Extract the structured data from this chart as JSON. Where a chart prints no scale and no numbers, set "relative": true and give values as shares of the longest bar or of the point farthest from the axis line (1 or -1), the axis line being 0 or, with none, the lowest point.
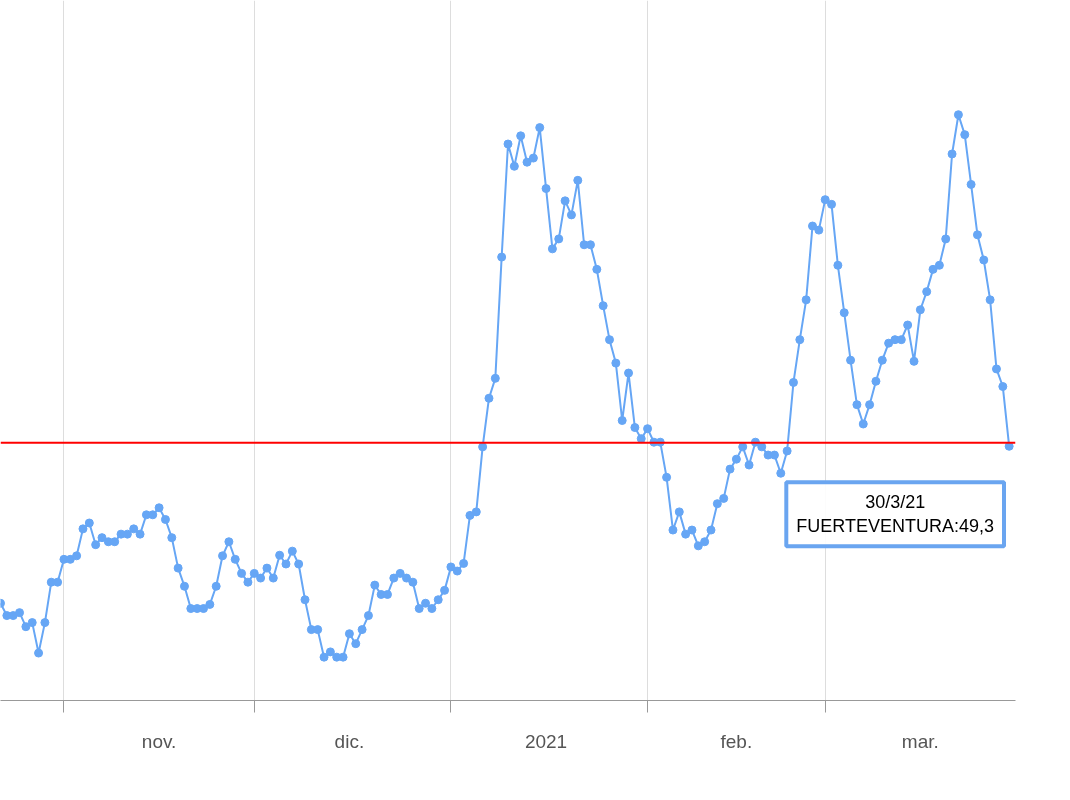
{
  "chart_data": {
    "type": "line",
    "relative": true,
    "marker": "circle",
    "line_style": "solid",
    "grid": "x",
    "xlim": [
      "2020-10-22",
      "2021-03-31"
    ],
    "xticks": [
      {
        "value": "2020-11-01",
        "label": null
      },
      {
        "value": "2020-11-16",
        "label": "nov."
      },
      {
        "value": "2020-12-01",
        "label": null
      },
      {
        "value": "2020-12-16",
        "label": "dic."
      },
      {
        "value": "2021-01-01",
        "label": null
      },
      {
        "value": "2021-01-16",
        "label": "2021"
      },
      {
        "value": "2021-02-01",
        "label": null
      },
      {
        "value": "2021-02-15",
        "label": "feb."
      },
      {
        "value": "2021-03-01",
        "label": null
      },
      {
        "value": "2021-03-16",
        "label": "mar."
      }
    ],
    "ref_lines": [
      {
        "axis": "y",
        "value": 0.44,
        "color": "#ff0000"
      }
    ],
    "annotations": [
      {
        "text": "30/3/21\nFUERTEVENTURA:49,3",
        "x": "2021-03-30",
        "y": 0.434
      }
    ],
    "series": [
      {
        "color": "#66a6f5",
        "x": [
          "2020-10-22",
          "2020-10-23",
          "2020-10-24",
          "2020-10-25",
          "2020-10-26",
          "2020-10-27",
          "2020-10-28",
          "2020-10-29",
          "2020-10-30",
          "2020-10-31",
          "2020-11-01",
          "2020-11-02",
          "2020-11-03",
          "2020-11-04",
          "2020-11-05",
          "2020-11-06",
          "2020-11-07",
          "2020-11-08",
          "2020-11-09",
          "2020-11-10",
          "2020-11-11",
          "2020-11-12",
          "2020-11-13",
          "2020-11-14",
          "2020-11-15",
          "2020-11-16",
          "2020-11-17",
          "2020-11-18",
          "2020-11-19",
          "2020-11-20",
          "2020-11-21",
          "2020-11-22",
          "2020-11-23",
          "2020-11-24",
          "2020-11-25",
          "2020-11-26",
          "2020-11-27",
          "2020-11-28",
          "2020-11-29",
          "2020-11-30",
          "2020-12-01",
          "2020-12-02",
          "2020-12-03",
          "2020-12-04",
          "2020-12-05",
          "2020-12-06",
          "2020-12-07",
          "2020-12-08",
          "2020-12-09",
          "2020-12-10",
          "2020-12-11",
          "2020-12-12",
          "2020-12-13",
          "2020-12-14",
          "2020-12-15",
          "2020-12-16",
          "2020-12-17",
          "2020-12-18",
          "2020-12-19",
          "2020-12-20",
          "2020-12-21",
          "2020-12-22",
          "2020-12-23",
          "2020-12-24",
          "2020-12-25",
          "2020-12-26",
          "2020-12-27",
          "2020-12-28",
          "2020-12-29",
          "2020-12-30",
          "2020-12-31",
          "2021-01-01",
          "2021-01-02",
          "2021-01-03",
          "2021-01-04",
          "2021-01-05",
          "2021-01-06",
          "2021-01-07",
          "2021-01-08",
          "2021-01-09",
          "2021-01-10",
          "2021-01-11",
          "2021-01-12",
          "2021-01-13",
          "2021-01-14",
          "2021-01-15",
          "2021-01-16",
          "2021-01-17",
          "2021-01-18",
          "2021-01-19",
          "2021-01-20",
          "2021-01-21",
          "2021-01-22",
          "2021-01-23",
          "2021-01-24",
          "2021-01-25",
          "2021-01-26",
          "2021-01-27",
          "2021-01-28",
          "2021-01-29",
          "2021-01-30",
          "2021-01-31",
          "2021-02-01",
          "2021-02-02",
          "2021-02-03",
          "2021-02-04",
          "2021-02-05",
          "2021-02-06",
          "2021-02-07",
          "2021-02-08",
          "2021-02-09",
          "2021-02-10",
          "2021-02-11",
          "2021-02-12",
          "2021-02-13",
          "2021-02-14",
          "2021-02-15",
          "2021-02-16",
          "2021-02-17",
          "2021-02-18",
          "2021-02-19",
          "2021-02-20",
          "2021-02-21",
          "2021-02-22",
          "2021-02-23",
          "2021-02-24",
          "2021-02-25",
          "2021-02-26",
          "2021-02-27",
          "2021-02-28",
          "2021-03-01",
          "2021-03-02",
          "2021-03-03",
          "2021-03-04",
          "2021-03-05",
          "2021-03-06",
          "2021-03-07",
          "2021-03-08",
          "2021-03-09",
          "2021-03-10",
          "2021-03-11",
          "2021-03-12",
          "2021-03-13",
          "2021-03-14",
          "2021-03-15",
          "2021-03-16",
          "2021-03-17",
          "2021-03-18",
          "2021-03-19",
          "2021-03-20",
          "2021-03-21",
          "2021-03-22",
          "2021-03-23",
          "2021-03-24",
          "2021-03-25",
          "2021-03-26",
          "2021-03-27",
          "2021-03-28",
          "2021-03-29",
          "2021-03-30"
        ],
        "values": [
          0.166,
          0.145,
          0.145,
          0.15,
          0.126,
          0.133,
          0.081,
          0.133,
          0.202,
          0.202,
          0.241,
          0.241,
          0.247,
          0.293,
          0.303,
          0.266,
          0.278,
          0.271,
          0.271,
          0.284,
          0.284,
          0.293,
          0.284,
          0.317,
          0.317,
          0.329,
          0.309,
          0.278,
          0.226,
          0.195,
          0.157,
          0.157,
          0.157,
          0.164,
          0.195,
          0.247,
          0.271,
          0.241,
          0.217,
          0.202,
          0.217,
          0.209,
          0.226,
          0.209,
          0.248,
          0.233,
          0.255,
          0.233,
          0.172,
          0.121,
          0.121,
          0.074,
          0.083,
          0.074,
          0.074,
          0.114,
          0.097,
          0.121,
          0.145,
          0.197,
          0.181,
          0.181,
          0.209,
          0.217,
          0.209,
          0.202,
          0.157,
          0.166,
          0.157,
          0.172,
          0.188,
          0.228,
          0.221,
          0.234,
          0.316,
          0.322,
          0.433,
          0.516,
          0.55,
          0.757,
          0.95,
          0.912,
          0.964,
          0.919,
          0.926,
          0.978,
          0.874,
          0.771,
          0.788,
          0.853,
          0.829,
          0.888,
          0.778,
          0.778,
          0.736,
          0.674,
          0.616,
          0.576,
          0.478,
          0.559,
          0.466,
          0.447,
          0.464,
          0.441,
          0.441,
          0.381,
          0.291,
          0.322,
          0.284,
          0.291,
          0.264,
          0.271,
          0.291,
          0.336,
          0.345,
          0.395,
          0.412,
          0.433,
          0.402,
          0.441,
          0.433,
          0.419,
          0.419,
          0.388,
          0.426,
          0.543,
          0.616,
          0.684,
          0.81,
          0.803,
          0.855,
          0.847,
          0.743,
          0.662,
          0.581,
          0.505,
          0.472,
          0.505,
          0.545,
          0.581,
          0.61,
          0.616,
          0.616,
          0.641,
          0.579,
          0.667,
          0.698,
          0.736,
          0.743,
          0.788,
          0.933,
          1.0,
          0.966,
          0.881,
          0.795,
          0.752,
          0.684,
          0.566,
          0.536,
          0.434
        ]
      }
    ]
  }
}
